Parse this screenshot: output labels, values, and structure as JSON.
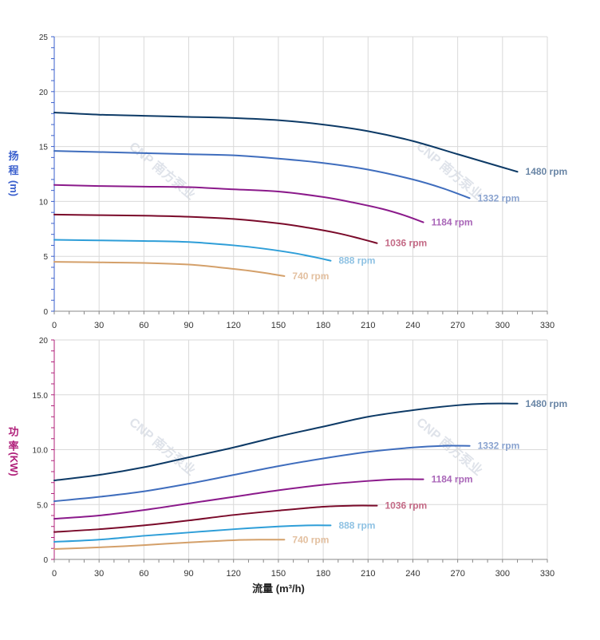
{
  "chart_data": [
    {
      "type": "line",
      "title": "",
      "xlabel": "",
      "ylabel": "扬程 (m)",
      "ylabel_chars": [
        "扬",
        "程",
        "(m)"
      ],
      "ylabel_color": "#3a5fcd",
      "xlim": [
        0,
        330
      ],
      "ylim": [
        0,
        25
      ],
      "x_ticks": [
        0,
        30,
        60,
        90,
        120,
        150,
        180,
        210,
        240,
        270,
        300,
        330
      ],
      "y_ticks": [
        0,
        5,
        10,
        15,
        20,
        25
      ],
      "y_tick_labels": [
        "0",
        "5",
        "10",
        "15",
        "20",
        "25"
      ],
      "y_tick_color": "#3a5fcd",
      "grid": true,
      "series": [
        {
          "name": "1480 rpm",
          "color": "#0d3a66",
          "label_color": "#6a86a6",
          "x": [
            0,
            30,
            60,
            90,
            120,
            150,
            180,
            210,
            240,
            270,
            295,
            310
          ],
          "y": [
            18.1,
            17.9,
            17.8,
            17.7,
            17.6,
            17.4,
            17.0,
            16.4,
            15.5,
            14.3,
            13.3,
            12.7
          ]
        },
        {
          "name": "1332 rpm",
          "color": "#3f6dbd",
          "label_color": "#8aa3cf",
          "x": [
            0,
            30,
            60,
            90,
            120,
            150,
            180,
            210,
            240,
            260,
            278
          ],
          "y": [
            14.6,
            14.5,
            14.4,
            14.3,
            14.2,
            13.9,
            13.5,
            12.9,
            12.0,
            11.2,
            10.3
          ]
        },
        {
          "name": "1184 rpm",
          "color": "#8b1a8b",
          "label_color": "#a966b8",
          "x": [
            0,
            30,
            60,
            90,
            120,
            150,
            180,
            200,
            220,
            235,
            247
          ],
          "y": [
            11.5,
            11.4,
            11.35,
            11.3,
            11.1,
            10.9,
            10.4,
            9.9,
            9.3,
            8.7,
            8.1
          ]
        },
        {
          "name": "1036 rpm",
          "color": "#7a0a2a",
          "label_color": "#c46a86",
          "x": [
            0,
            30,
            60,
            90,
            120,
            150,
            170,
            190,
            205,
            216
          ],
          "y": [
            8.8,
            8.75,
            8.7,
            8.6,
            8.4,
            8.0,
            7.6,
            7.1,
            6.6,
            6.2
          ]
        },
        {
          "name": "888 rpm",
          "color": "#2e9ed8",
          "label_color": "#8fc2e3",
          "x": [
            0,
            30,
            60,
            90,
            120,
            140,
            160,
            175,
            185
          ],
          "y": [
            6.5,
            6.45,
            6.4,
            6.3,
            6.0,
            5.7,
            5.3,
            4.9,
            4.6
          ]
        },
        {
          "name": "740 rpm",
          "color": "#d4a06a",
          "label_color": "#e3c0a0",
          "x": [
            0,
            30,
            60,
            90,
            110,
            130,
            145,
            154
          ],
          "y": [
            4.5,
            4.45,
            4.4,
            4.25,
            4.0,
            3.7,
            3.4,
            3.2
          ]
        }
      ]
    },
    {
      "type": "line",
      "title": "",
      "xlabel": "流量 (m³/h)",
      "ylabel": "功率 (KW)",
      "ylabel_chars": [
        "功",
        "率",
        "(KW)"
      ],
      "ylabel_color": "#b0207a",
      "xlim": [
        0,
        330
      ],
      "ylim": [
        0,
        20
      ],
      "x_ticks": [
        0,
        30,
        60,
        90,
        120,
        150,
        180,
        210,
        240,
        270,
        300,
        330
      ],
      "y_ticks": [
        0,
        5,
        10,
        15,
        20
      ],
      "y_tick_labels": [
        "0",
        "5.0",
        "10.0",
        "15.0",
        "20"
      ],
      "y_tick_color": "#b0207a",
      "grid": true,
      "series": [
        {
          "name": "1480 rpm",
          "color": "#0d3a66",
          "label_color": "#6a86a6",
          "x": [
            0,
            30,
            60,
            90,
            120,
            150,
            180,
            210,
            240,
            270,
            290,
            310
          ],
          "y": [
            7.2,
            7.7,
            8.4,
            9.3,
            10.2,
            11.2,
            12.1,
            13.0,
            13.6,
            14.05,
            14.2,
            14.2
          ]
        },
        {
          "name": "1332 rpm",
          "color": "#3f6dbd",
          "label_color": "#8aa3cf",
          "x": [
            0,
            30,
            60,
            90,
            120,
            150,
            180,
            210,
            240,
            260,
            278
          ],
          "y": [
            5.3,
            5.7,
            6.2,
            6.9,
            7.7,
            8.5,
            9.2,
            9.8,
            10.2,
            10.35,
            10.35
          ]
        },
        {
          "name": "1184 rpm",
          "color": "#8b1a8b",
          "label_color": "#a966b8",
          "x": [
            0,
            30,
            60,
            90,
            120,
            150,
            180,
            210,
            230,
            247
          ],
          "y": [
            3.7,
            4.0,
            4.5,
            5.1,
            5.7,
            6.3,
            6.8,
            7.15,
            7.3,
            7.3
          ]
        },
        {
          "name": "1036 rpm",
          "color": "#7a0a2a",
          "label_color": "#c46a86",
          "x": [
            0,
            30,
            60,
            90,
            120,
            150,
            180,
            200,
            216
          ],
          "y": [
            2.5,
            2.75,
            3.1,
            3.55,
            4.05,
            4.45,
            4.8,
            4.9,
            4.9
          ]
        },
        {
          "name": "888 rpm",
          "color": "#2e9ed8",
          "label_color": "#8fc2e3",
          "x": [
            0,
            30,
            60,
            90,
            120,
            150,
            170,
            185
          ],
          "y": [
            1.6,
            1.8,
            2.15,
            2.45,
            2.75,
            3.0,
            3.1,
            3.1
          ]
        },
        {
          "name": "740 rpm",
          "color": "#d4a06a",
          "label_color": "#e3c0a0",
          "x": [
            0,
            30,
            60,
            90,
            120,
            140,
            154
          ],
          "y": [
            0.95,
            1.1,
            1.3,
            1.55,
            1.75,
            1.8,
            1.8
          ]
        }
      ]
    }
  ],
  "watermark": {
    "text": "CNP 南方泵业"
  }
}
